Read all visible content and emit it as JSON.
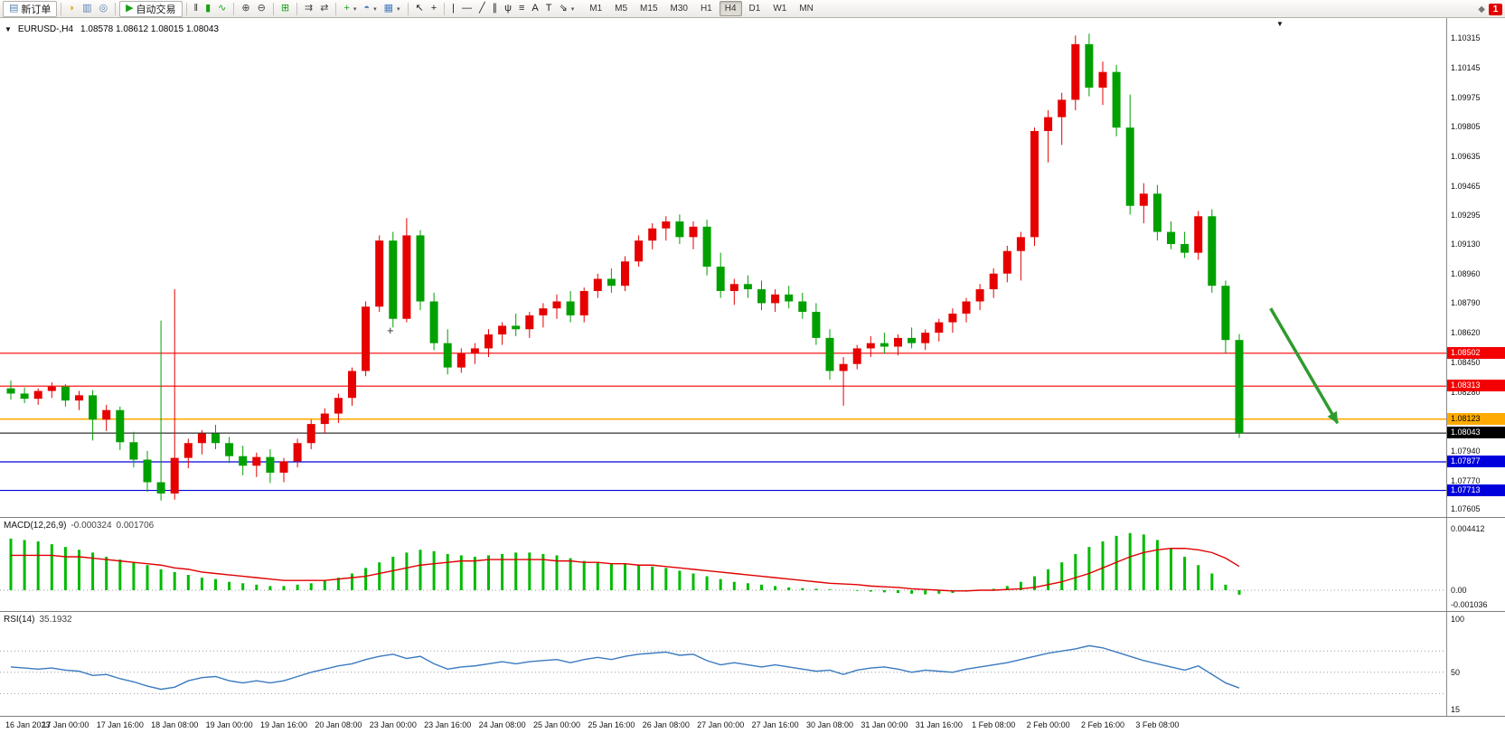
{
  "icons": {
    "one_click": "▼",
    "shift_marker": "▼",
    "dropdown_caret": "▾",
    "community": "◆"
  },
  "main": {
    "symbol_period": "EURUSD-,H4",
    "ohlc": "1.08578 1.08612 1.08015 1.08043"
  },
  "toolbar": {
    "badge": "1",
    "groups": [
      [
        {
          "name": "new-order-button",
          "icon": "new-order-icon",
          "glyph": "▤",
          "color": "#5a82b4",
          "label": "新订单",
          "framed": true
        }
      ],
      [
        {
          "name": "alerts-button",
          "icon": "horn-icon",
          "glyph": "◗",
          "color": "#e8a413"
        },
        {
          "name": "market-watch-button",
          "icon": "market-watch-icon",
          "glyph": "▥",
          "color": "#5a82b4"
        },
        {
          "name": "navigator-button",
          "icon": "navigator-icon",
          "glyph": "◎",
          "color": "#5a82b4"
        }
      ],
      [
        {
          "name": "autotrading-button",
          "icon": "autotrading-play-icon",
          "glyph": "▶",
          "color": "#18a018",
          "label": "自动交易",
          "framed": true
        }
      ],
      [
        {
          "name": "bar-chart-button",
          "icon": "bar-chart-icon",
          "glyph": "‖",
          "color": "#333333"
        },
        {
          "name": "candlestick-chart-button",
          "icon": "candlestick-icon",
          "glyph": "▮",
          "color": "#18a018"
        },
        {
          "name": "line-chart-button",
          "icon": "line-chart-icon",
          "glyph": "∿",
          "color": "#18a018"
        }
      ],
      [
        {
          "name": "zoom-in-button",
          "icon": "zoom-in-icon",
          "glyph": "⊕",
          "color": "#444444"
        },
        {
          "name": "zoom-out-button",
          "icon": "zoom-out-icon",
          "glyph": "⊖",
          "color": "#444444"
        }
      ],
      [
        {
          "name": "tile-windows-button",
          "icon": "tile-windows-icon",
          "glyph": "⊞",
          "color": "#18a018"
        }
      ],
      [
        {
          "name": "auto-scroll-button",
          "icon": "auto-scroll-icon",
          "glyph": "⇉",
          "color": "#444444"
        },
        {
          "name": "chart-shift-button",
          "icon": "chart-shift-icon",
          "glyph": "⇄",
          "color": "#444444"
        }
      ],
      [
        {
          "name": "indicators-button",
          "icon": "add-indicator-icon",
          "glyph": "+",
          "color": "#18a018",
          "dropdown": true
        },
        {
          "name": "periods-button",
          "icon": "clock-icon",
          "glyph": "◓",
          "color": "#4a7ebb",
          "dropdown": true
        },
        {
          "name": "templates-button",
          "icon": "template-icon",
          "glyph": "▦",
          "color": "#4a7ebb",
          "dropdown": true
        }
      ],
      [
        {
          "name": "cursor-button",
          "icon": "cursor-icon",
          "glyph": "↖",
          "color": "#222222"
        },
        {
          "name": "crosshair-button",
          "icon": "crosshair-icon",
          "glyph": "+",
          "color": "#222222"
        }
      ],
      [
        {
          "name": "vertical-line-button",
          "icon": "vertical-line-icon",
          "glyph": "|",
          "color": "#222222"
        },
        {
          "name": "horizontal-line-button",
          "icon": "horizontal-line-icon",
          "glyph": "—",
          "color": "#222222"
        },
        {
          "name": "trendline-button",
          "icon": "trendline-icon",
          "glyph": "╱",
          "color": "#222222"
        },
        {
          "name": "equidistant-channel-button",
          "icon": "channel-icon",
          "glyph": "∥",
          "color": "#222222"
        },
        {
          "name": "andrews-pitchfork-button",
          "icon": "pitchfork-icon",
          "glyph": "ψ",
          "color": "#222222"
        },
        {
          "name": "fibonacci-retracement-button",
          "icon": "fibonacci-icon",
          "glyph": "≡",
          "color": "#222222"
        },
        {
          "name": "text-button",
          "icon": "text-icon",
          "glyph": "A",
          "color": "#222222"
        },
        {
          "name": "text-label-button",
          "icon": "text-label-icon",
          "glyph": "T",
          "color": "#222222"
        },
        {
          "name": "arrows-button",
          "icon": "arrows-icon",
          "glyph": "⇘",
          "color": "#222222",
          "dropdown": true
        }
      ]
    ],
    "timeframes": {
      "items": [
        "M1",
        "M5",
        "M15",
        "M30",
        "H1",
        "H4",
        "D1",
        "W1",
        "MN"
      ],
      "active": "H4"
    }
  },
  "chart_data": {
    "type": "candlestick",
    "symbol": "EURUSD-",
    "period": "H4",
    "ohlc_current": {
      "open": "1.08578",
      "high": "1.08612",
      "low": "1.08015",
      "close": "1.08043"
    },
    "colors": {
      "bull": "#e60000",
      "bear": "#00a000"
    },
    "price_axis_ticks": [
      "1.10315",
      "1.10145",
      "1.09975",
      "1.09805",
      "1.09635",
      "1.09465",
      "1.09295",
      "1.09130",
      "1.08960",
      "1.08790",
      "1.08620",
      "1.08450",
      "1.08280",
      "1.08110",
      "1.07940",
      "1.07770",
      "1.07605"
    ],
    "time_axis_labels": [
      "16 Jan 2023",
      "17 Jan 00:00",
      "17 Jan 16:00",
      "18 Jan 08:00",
      "19 Jan 00:00",
      "19 Jan 16:00",
      "20 Jan 08:00",
      "23 Jan 00:00",
      "23 Jan 16:00",
      "24 Jan 08:00",
      "25 Jan 00:00",
      "25 Jan 16:00",
      "26 Jan 08:00",
      "27 Jan 00:00",
      "27 Jan 16:00",
      "30 Jan 08:00",
      "31 Jan 00:00",
      "31 Jan 16:00",
      "1 Feb 08:00",
      "2 Feb 00:00",
      "2 Feb 16:00",
      "3 Feb 08:00"
    ],
    "candles": [
      [
        1.083,
        1.08345,
        1.08235,
        1.0827
      ],
      [
        1.0827,
        1.08305,
        1.08215,
        1.0824
      ],
      [
        1.0824,
        1.083,
        1.08205,
        1.08285
      ],
      [
        1.08285,
        1.08335,
        1.08245,
        1.0831
      ],
      [
        1.0831,
        1.08325,
        1.08195,
        1.0823
      ],
      [
        1.0823,
        1.08285,
        1.08175,
        1.0826
      ],
      [
        1.0826,
        1.0829,
        1.08,
        1.0812
      ],
      [
        1.0812,
        1.08205,
        1.08055,
        1.08175
      ],
      [
        1.08175,
        1.08195,
        1.07945,
        1.0799
      ],
      [
        1.0799,
        1.0805,
        1.07845,
        1.0789
      ],
      [
        1.0789,
        1.0794,
        1.07705,
        1.0776
      ],
      [
        1.0776,
        1.0869,
        1.07655,
        1.07695
      ],
      [
        1.07695,
        1.0887,
        1.0766,
        1.079
      ],
      [
        1.079,
        1.0801,
        1.0784,
        1.07985
      ],
      [
        1.07985,
        1.0806,
        1.0792,
        1.0804
      ],
      [
        1.0804,
        1.0809,
        1.0795,
        1.07985
      ],
      [
        1.07985,
        1.0802,
        1.0787,
        1.0791
      ],
      [
        1.0791,
        1.0797,
        1.078,
        1.07855
      ],
      [
        1.07855,
        1.0793,
        1.0779,
        1.07905
      ],
      [
        1.07905,
        1.0795,
        1.07755,
        1.07815
      ],
      [
        1.07815,
        1.079,
        1.0776,
        1.0788
      ],
      [
        1.0788,
        1.0801,
        1.07845,
        1.07985
      ],
      [
        1.07985,
        1.0812,
        1.0795,
        1.08095
      ],
      [
        1.08095,
        1.08185,
        1.0804,
        1.08155
      ],
      [
        1.08155,
        1.0827,
        1.081,
        1.08245
      ],
      [
        1.08245,
        1.0842,
        1.082,
        1.084
      ],
      [
        1.084,
        1.088,
        1.0837,
        1.0877
      ],
      [
        1.0877,
        1.0918,
        1.0874,
        1.0915
      ],
      [
        1.0915,
        1.092,
        1.0865,
        1.087
      ],
      [
        1.087,
        1.0928,
        1.0868,
        1.0918
      ],
      [
        1.0918,
        1.0921,
        1.0875,
        1.088
      ],
      [
        1.088,
        1.0885,
        1.0852,
        1.0856
      ],
      [
        1.0856,
        1.0864,
        1.0838,
        1.0842
      ],
      [
        1.0842,
        1.0853,
        1.0839,
        1.085
      ],
      [
        1.085,
        1.0856,
        1.0844,
        1.0853
      ],
      [
        1.0853,
        1.0864,
        1.0848,
        1.0861
      ],
      [
        1.0861,
        1.0868,
        1.0855,
        1.0866
      ],
      [
        1.0866,
        1.0873,
        1.086,
        1.0864
      ],
      [
        1.0864,
        1.0874,
        1.0859,
        1.0872
      ],
      [
        1.0872,
        1.0879,
        1.0865,
        1.0876
      ],
      [
        1.0876,
        1.0884,
        1.087,
        1.088
      ],
      [
        1.088,
        1.0886,
        1.0868,
        1.0872
      ],
      [
        1.0872,
        1.0888,
        1.0868,
        1.0886
      ],
      [
        1.0886,
        1.0896,
        1.0882,
        1.0893
      ],
      [
        1.0893,
        1.0899,
        1.0885,
        1.0889
      ],
      [
        1.0889,
        1.0906,
        1.0886,
        1.0903
      ],
      [
        1.0903,
        1.0918,
        1.09,
        1.0915
      ],
      [
        1.0915,
        1.0925,
        1.091,
        1.0922
      ],
      [
        1.0922,
        1.0929,
        1.0915,
        1.0926
      ],
      [
        1.0926,
        1.093,
        1.0913,
        1.0917
      ],
      [
        1.0917,
        1.0926,
        1.091,
        1.0923
      ],
      [
        1.0923,
        1.0927,
        1.0895,
        1.09
      ],
      [
        1.09,
        1.0908,
        1.0882,
        1.0886
      ],
      [
        1.0886,
        1.0893,
        1.0878,
        1.089
      ],
      [
        1.089,
        1.0895,
        1.0882,
        1.0887
      ],
      [
        1.0887,
        1.0892,
        1.0875,
        1.0879
      ],
      [
        1.0879,
        1.0887,
        1.0874,
        1.0884
      ],
      [
        1.0884,
        1.0889,
        1.0876,
        1.088
      ],
      [
        1.088,
        1.0885,
        1.087,
        1.0874
      ],
      [
        1.0874,
        1.0879,
        1.0855,
        1.0859
      ],
      [
        1.0859,
        1.0864,
        1.0835,
        1.084
      ],
      [
        1.084,
        1.0848,
        1.082,
        1.0844
      ],
      [
        1.0844,
        1.0855,
        1.0841,
        1.0853
      ],
      [
        1.0853,
        1.086,
        1.0848,
        1.0856
      ],
      [
        1.0856,
        1.0862,
        1.085,
        1.0854
      ],
      [
        1.0854,
        1.0861,
        1.0849,
        1.0859
      ],
      [
        1.0859,
        1.0865,
        1.0853,
        1.0856
      ],
      [
        1.0856,
        1.0864,
        1.0852,
        1.0862
      ],
      [
        1.0862,
        1.087,
        1.0857,
        1.0868
      ],
      [
        1.0868,
        1.0876,
        1.0862,
        1.0873
      ],
      [
        1.0873,
        1.0882,
        1.0868,
        1.088
      ],
      [
        1.088,
        1.089,
        1.0875,
        1.0887
      ],
      [
        1.0887,
        1.0899,
        1.0882,
        1.0896
      ],
      [
        1.0896,
        1.0912,
        1.0891,
        1.0909
      ],
      [
        1.0909,
        1.092,
        1.0892,
        1.0917
      ],
      [
        1.0917,
        1.098,
        1.0912,
        1.0978
      ],
      [
        1.0978,
        1.099,
        1.096,
        1.0986
      ],
      [
        1.0986,
        1.1,
        1.097,
        1.0996
      ],
      [
        1.0996,
        1.1033,
        1.099,
        1.1028
      ],
      [
        1.1028,
        1.1034,
        1.0998,
        1.1003
      ],
      [
        1.1003,
        1.1018,
        1.0993,
        1.1012
      ],
      [
        1.1012,
        1.1016,
        1.0975,
        1.098
      ],
      [
        1.098,
        1.0999,
        1.093,
        1.0935
      ],
      [
        1.0935,
        1.0948,
        1.0925,
        1.0942
      ],
      [
        1.0942,
        1.0947,
        1.0915,
        1.092
      ],
      [
        1.092,
        1.0926,
        1.091,
        1.0913
      ],
      [
        1.0913,
        1.092,
        1.0905,
        1.0908
      ],
      [
        1.0908,
        1.0932,
        1.0904,
        1.0929
      ],
      [
        1.0929,
        1.0933,
        1.0885,
        1.0889
      ],
      [
        1.0889,
        1.0892,
        1.085,
        1.08578
      ],
      [
        1.08578,
        1.08612,
        1.08015,
        1.08043
      ]
    ],
    "hlines": [
      {
        "price": 1.08502,
        "label": "1.08502",
        "color": "#f50000",
        "text_color": "#ffffff",
        "width": 1.2
      },
      {
        "price": 1.08313,
        "label": "1.08313",
        "color": "#f50000",
        "text_color": "#ffffff",
        "width": 1.2
      },
      {
        "price": 1.08123,
        "label": "1.08123",
        "color": "#ffaa00",
        "text_color": "#000000",
        "width": 1.6
      },
      {
        "price": 1.08043,
        "label": "1.08043",
        "color": "#000000",
        "text_color": "#ffffff",
        "width": 1
      },
      {
        "price": 1.07877,
        "label": "1.07877",
        "color": "#0000dd",
        "text_color": "#ffffff",
        "width": 1.2
      },
      {
        "price": 1.07713,
        "label": "1.07713",
        "color": "#0000dd",
        "text_color": "#ffffff",
        "width": 1.2
      }
    ],
    "annotations": [
      {
        "type": "arrow",
        "bar_from": 92.3,
        "price_from": 1.0876,
        "bar_to": 97.2,
        "price_to": 1.081,
        "color": "#2e9b2e"
      },
      {
        "type": "cross",
        "bar": 27.8,
        "price": 1.0863,
        "color": "#333333"
      }
    ],
    "macd": {
      "label": "MACD(12,26,9)",
      "value_main": "-0.000324",
      "value_signal": "0.001706",
      "histogram_color": "#00bb00",
      "signal_color": "#e00000",
      "axis": [
        {
          "label": "0.004412",
          "v": 0.004412
        },
        {
          "label": "0.00",
          "v": 0
        },
        {
          "label": "-0.001036",
          "v": -0.001036
        }
      ],
      "histogram": [
        0.0037,
        0.0036,
        0.0035,
        0.0033,
        0.0031,
        0.0029,
        0.0027,
        0.0024,
        0.0022,
        0.002,
        0.0018,
        0.0015,
        0.0013,
        0.0011,
        0.0009,
        0.0008,
        0.0006,
        0.0005,
        0.0004,
        0.0003,
        0.0003,
        0.0004,
        0.0005,
        0.0007,
        0.0009,
        0.0012,
        0.0016,
        0.002,
        0.0024,
        0.0027,
        0.0029,
        0.0028,
        0.0026,
        0.0025,
        0.0024,
        0.0025,
        0.0026,
        0.0027,
        0.0027,
        0.0026,
        0.0025,
        0.0023,
        0.0021,
        0.002,
        0.0019,
        0.0019,
        0.0018,
        0.0017,
        0.0016,
        0.0014,
        0.0012,
        0.001,
        0.0008,
        0.0006,
        0.0005,
        0.0004,
        0.0003,
        0.0002,
        0.00015,
        0.0001,
        5e-05,
        0.0,
        -5e-05,
        -0.0001,
        -0.00015,
        -0.0002,
        -0.00025,
        -0.0003,
        -0.00025,
        -0.0002,
        -0.0001,
        0.0,
        0.0001,
        0.0003,
        0.0006,
        0.001,
        0.0015,
        0.002,
        0.0026,
        0.0031,
        0.0035,
        0.0039,
        0.0041,
        0.004,
        0.0036,
        0.003,
        0.0024,
        0.0018,
        0.0012,
        0.0004,
        -0.000324
      ],
      "signal": [
        0.0025,
        0.0025,
        0.0025,
        0.0025,
        0.0024,
        0.0024,
        0.0023,
        0.0022,
        0.0021,
        0.002,
        0.0019,
        0.0018,
        0.0016,
        0.0015,
        0.0013,
        0.0012,
        0.0011,
        0.001,
        0.0009,
        0.0008,
        0.0007,
        0.0007,
        0.0007,
        0.0007,
        0.0008,
        0.0009,
        0.001,
        0.0012,
        0.0014,
        0.0016,
        0.0018,
        0.0019,
        0.002,
        0.0021,
        0.0021,
        0.0022,
        0.0022,
        0.0022,
        0.0022,
        0.0022,
        0.0021,
        0.0021,
        0.002,
        0.002,
        0.0019,
        0.0019,
        0.0018,
        0.0018,
        0.0017,
        0.0016,
        0.0015,
        0.0014,
        0.0013,
        0.0012,
        0.0011,
        0.001,
        0.0009,
        0.0008,
        0.0007,
        0.0006,
        0.0005,
        0.00045,
        0.0004,
        0.0003,
        0.00025,
        0.0002,
        0.0001,
        5e-05,
        0.0,
        -5e-05,
        -5e-05,
        0.0,
        0.0,
        5e-05,
        0.0001,
        0.0002,
        0.0004,
        0.0006,
        0.0009,
        0.0012,
        0.0016,
        0.002,
        0.0024,
        0.0027,
        0.0029,
        0.003,
        0.003,
        0.0029,
        0.0027,
        0.0023,
        0.001706
      ]
    },
    "rsi": {
      "label": "RSI(14)",
      "value": "35.1932",
      "line_color": "#3a7abf",
      "axis": [
        {
          "label": "100",
          "v": 100
        },
        {
          "label": "50",
          "v": 50
        },
        {
          "label": "15",
          "v": 15
        }
      ],
      "levels": [
        70,
        50,
        30
      ],
      "values": [
        55,
        54,
        53,
        54,
        52,
        51,
        47,
        48,
        44,
        41,
        37,
        34,
        36,
        42,
        45,
        46,
        42,
        40,
        42,
        40,
        42,
        46,
        50,
        53,
        56,
        58,
        62,
        65,
        67,
        63,
        65,
        58,
        53,
        55,
        56,
        58,
        60,
        58,
        60,
        61,
        62,
        59,
        62,
        64,
        62,
        65,
        67,
        68,
        69,
        66,
        67,
        61,
        57,
        59,
        57,
        55,
        57,
        55,
        53,
        51,
        52,
        48,
        52,
        54,
        55,
        53,
        50,
        52,
        51,
        50,
        53,
        55,
        57,
        59,
        62,
        65,
        68,
        70,
        72,
        75,
        73,
        69,
        65,
        61,
        58,
        55,
        52,
        56,
        48,
        40,
        35.1932
      ]
    }
  }
}
